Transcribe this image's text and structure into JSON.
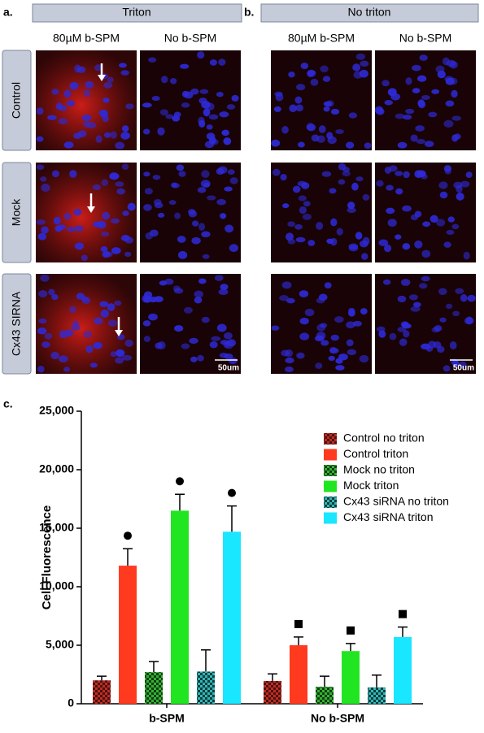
{
  "figure": {
    "panel_a": {
      "label": "a.",
      "header": "Triton",
      "columns": [
        "80µM b-SPM",
        "No b-SPM"
      ],
      "rows": [
        "Control",
        "Mock",
        "Cx43 SIRNA"
      ],
      "scale_bar": "50um"
    },
    "panel_b": {
      "label": "b.",
      "header": "No triton",
      "columns": [
        "80µM b-SPM",
        "No b-SPM"
      ],
      "scale_bar": "50um"
    },
    "panel_c": {
      "label": "c."
    }
  },
  "chart_data": {
    "type": "bar",
    "ylabel": "Cell Fluorescence",
    "categories": [
      "b-SPM",
      "No b-SPM"
    ],
    "ylim": [
      0,
      25000
    ],
    "yticks": [
      0,
      {
        "value": 5000,
        "label": "5,000"
      },
      {
        "value": 10000,
        "label": "10,000"
      },
      {
        "value": 15000,
        "label": "15,000"
      },
      {
        "value": 20000,
        "label": "20,000"
      },
      {
        "value": 25000,
        "label": "25,000"
      }
    ],
    "legend": "upper right",
    "series": [
      {
        "name": "Control no triton",
        "color": "#c8281e",
        "pattern": "checker",
        "values": [
          2000,
          1950
        ],
        "errors": [
          350,
          600
        ]
      },
      {
        "name": "Control triton",
        "color": "#ff3a1e",
        "values": [
          11800,
          5000
        ],
        "errors": [
          1450,
          700
        ],
        "markers": [
          "circle",
          "square"
        ]
      },
      {
        "name": "Mock no triton",
        "color": "#2fb52f",
        "pattern": "checker",
        "values": [
          2700,
          1450
        ],
        "errors": [
          900,
          900
        ]
      },
      {
        "name": "Mock triton",
        "color": "#22e522",
        "values": [
          16500,
          4500
        ],
        "errors": [
          1400,
          650
        ],
        "markers": [
          "circle",
          "square"
        ]
      },
      {
        "name": "Cx43 siRNA no triton",
        "color": "#2cb8b8",
        "pattern": "checker",
        "values": [
          2750,
          1400
        ],
        "errors": [
          1850,
          1050
        ]
      },
      {
        "name": "Cx43 siRNA triton",
        "color": "#19e6ff",
        "values": [
          14700,
          5700
        ],
        "errors": [
          2200,
          850
        ],
        "markers": [
          "circle",
          "square"
        ]
      }
    ]
  }
}
